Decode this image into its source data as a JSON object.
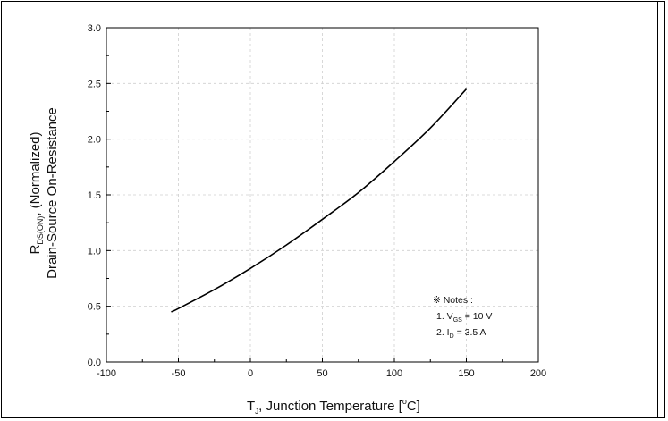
{
  "chart_data": {
    "type": "line",
    "xlabel": {
      "main": "T",
      "sub": "J",
      "rest": ", Junction Temperature [",
      "sup": "o",
      "unit": "C]"
    },
    "ylabel": {
      "line1_main": "R",
      "line1_sub": "DS(ON)",
      "line1_rest": ", (Normalized)",
      "line2": "Drain-Source On-Resistance"
    },
    "xlim": [
      -100,
      200
    ],
    "ylim": [
      0.0,
      3.0
    ],
    "xticks": [
      -100,
      -50,
      0,
      50,
      100,
      150,
      200
    ],
    "xtick_labels": [
      "-100",
      "-50",
      "0",
      "50",
      "100",
      "150",
      "200"
    ],
    "yticks": [
      0.0,
      0.5,
      1.0,
      1.5,
      2.0,
      2.5,
      3.0
    ],
    "ytick_labels": [
      "0.0",
      "0.5",
      "1.0",
      "1.5",
      "2.0",
      "2.5",
      "3.0"
    ],
    "grid": true,
    "series": [
      {
        "x": [
          -55,
          -50,
          -25,
          0,
          25,
          50,
          75,
          100,
          125,
          150
        ],
        "y": [
          0.45,
          0.48,
          0.65,
          0.84,
          1.05,
          1.28,
          1.52,
          1.8,
          2.1,
          2.45
        ]
      }
    ],
    "notes": {
      "title": "※ Notes :",
      "n1_pre": "1. V",
      "n1_sub": "GS",
      "n1_post": " = 10 V",
      "n2_pre": "2. I",
      "n2_sub": "D",
      "n2_post": " = 3.5 A"
    }
  }
}
